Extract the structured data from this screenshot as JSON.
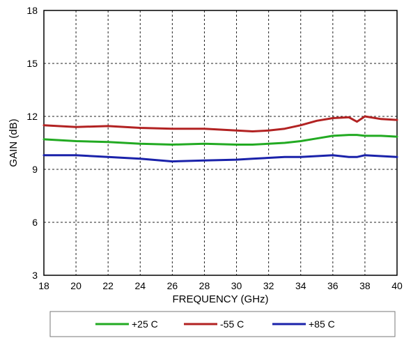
{
  "chart_data": {
    "type": "line",
    "xlabel": "FREQUENCY (GHz)",
    "ylabel": "GAIN (dB)",
    "xlim": [
      18,
      40
    ],
    "ylim": [
      3,
      18
    ],
    "x_ticks": [
      18,
      20,
      22,
      24,
      26,
      28,
      30,
      32,
      34,
      36,
      38,
      40
    ],
    "y_ticks": [
      3,
      6,
      9,
      12,
      15,
      18
    ],
    "grid": true,
    "legend_position": "bottom",
    "x": [
      18,
      20,
      22,
      24,
      26,
      28,
      30,
      31,
      32,
      33,
      34,
      35,
      36,
      37,
      37.5,
      38,
      39,
      40
    ],
    "series": [
      {
        "name": "+25 C",
        "color": "#22aa22",
        "values": [
          10.7,
          10.6,
          10.55,
          10.45,
          10.4,
          10.45,
          10.4,
          10.4,
          10.45,
          10.5,
          10.6,
          10.75,
          10.9,
          10.95,
          10.95,
          10.9,
          10.9,
          10.85
        ]
      },
      {
        "name": "-55 C",
        "color": "#b22222",
        "values": [
          11.5,
          11.4,
          11.45,
          11.35,
          11.3,
          11.3,
          11.2,
          11.15,
          11.2,
          11.3,
          11.5,
          11.75,
          11.9,
          11.95,
          11.7,
          12.0,
          11.85,
          11.8
        ]
      },
      {
        "name": "+85 C",
        "color": "#1a22aa",
        "values": [
          9.8,
          9.8,
          9.7,
          9.6,
          9.45,
          9.5,
          9.55,
          9.6,
          9.65,
          9.7,
          9.7,
          9.75,
          9.8,
          9.7,
          9.7,
          9.8,
          9.75,
          9.7
        ]
      }
    ]
  }
}
